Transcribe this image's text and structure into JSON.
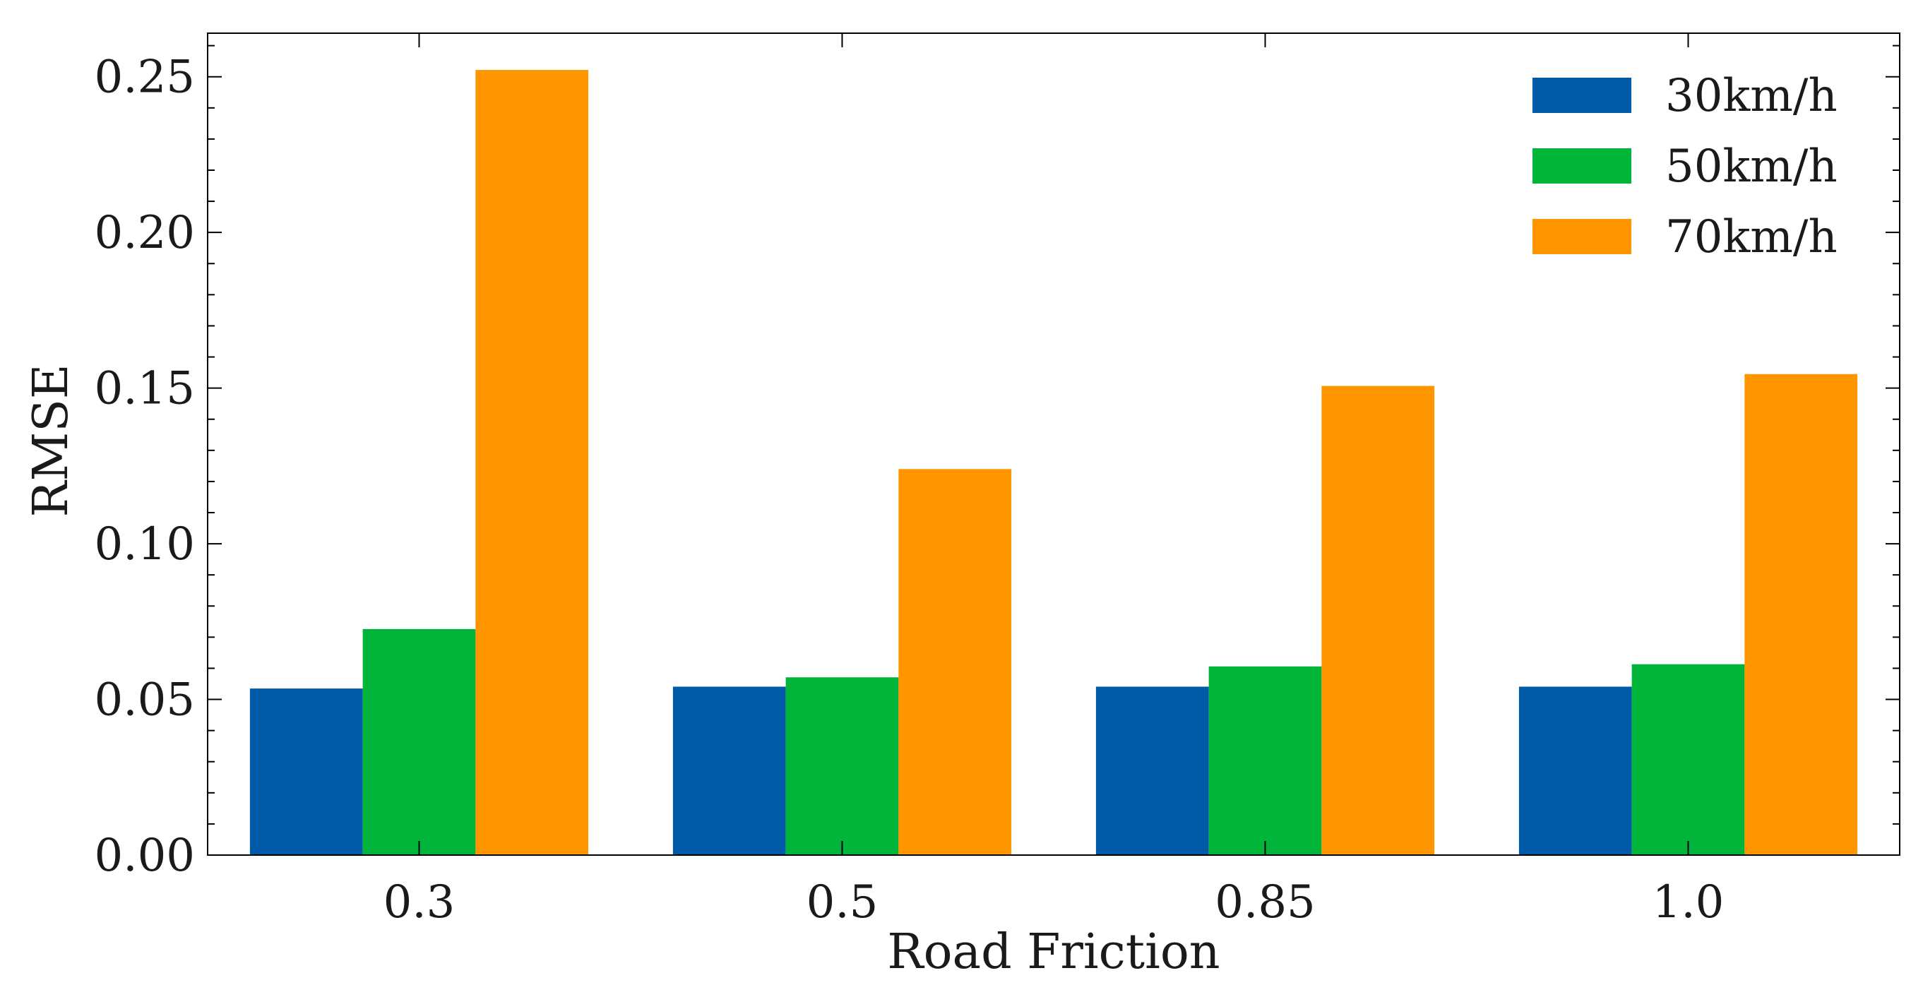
{
  "chart_data": {
    "type": "bar",
    "xlabel": "Road Friction",
    "ylabel": "RMSE",
    "categories": [
      "0.3",
      "0.5",
      "0.85",
      "1.0"
    ],
    "ylim": [
      0,
      0.264
    ],
    "yticks": [
      "0.00",
      "0.05",
      "0.10",
      "0.15",
      "0.20",
      "0.25"
    ],
    "series": [
      {
        "name": "30km/h",
        "color": "#005aa8",
        "values": [
          0.0535,
          0.0541,
          0.0541,
          0.0541
        ]
      },
      {
        "name": "50km/h",
        "color": "#00b53a",
        "values": [
          0.0726,
          0.0571,
          0.0606,
          0.0613
        ]
      },
      {
        "name": "70km/h",
        "color": "#ff9600",
        "values": [
          0.2522,
          0.124,
          0.1507,
          0.1545
        ]
      }
    ],
    "legend": "top-right",
    "grid": false
  }
}
